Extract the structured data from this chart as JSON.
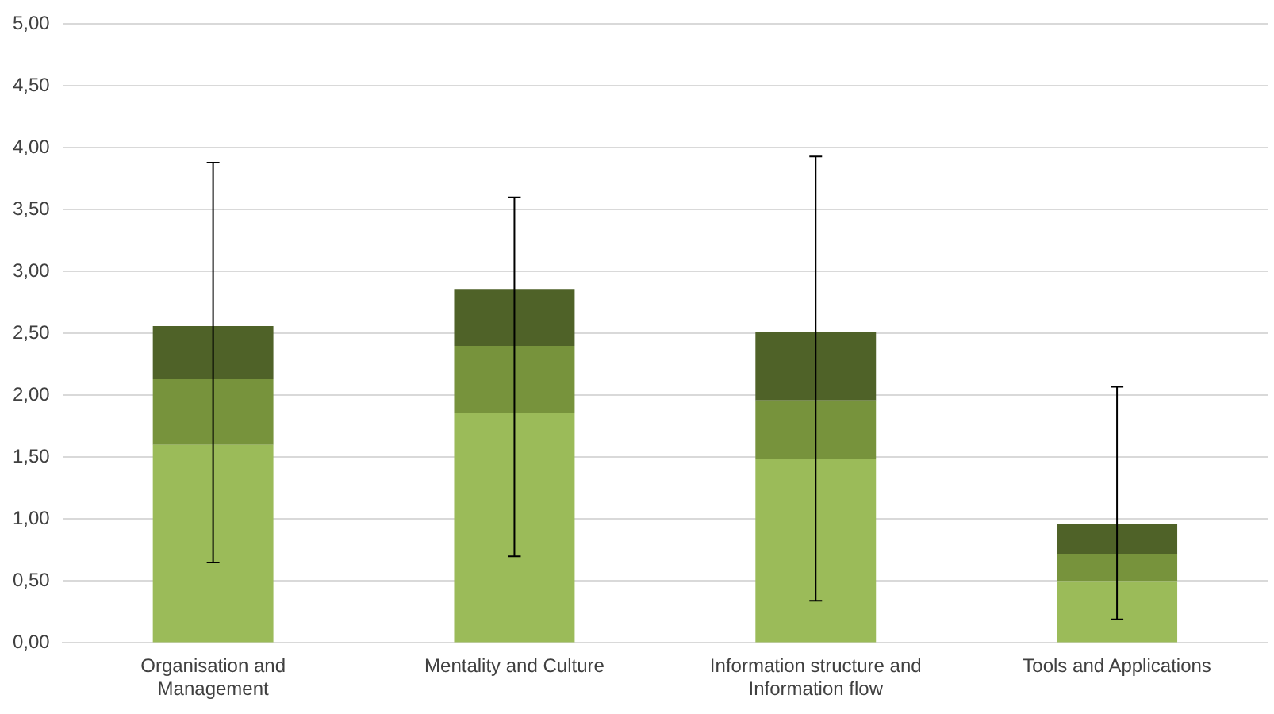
{
  "chart_data": {
    "type": "bar",
    "stacked": true,
    "categories": [
      "Organisation and Management",
      "Mentality and Culture",
      "Information structure and Information flow",
      "Tools and Applications"
    ],
    "series": [
      {
        "color": "#9bbb59",
        "values": [
          1.6,
          1.86,
          1.49,
          0.5
        ]
      },
      {
        "color": "#77933c",
        "values": [
          0.53,
          0.54,
          0.47,
          0.22
        ]
      },
      {
        "color": "#4f6228",
        "values": [
          0.43,
          0.46,
          0.55,
          0.24
        ],
        "errors": [
          [
            0.65,
            3.88
          ],
          [
            0.7,
            3.6
          ],
          [
            0.34,
            3.93
          ],
          [
            0.19,
            2.07
          ]
        ]
      }
    ],
    "ylim": [
      0,
      5
    ],
    "yticks": [
      {
        "value": 0,
        "label": "0,00"
      },
      {
        "value": 0.5,
        "label": "0,50"
      },
      {
        "value": 1,
        "label": "1,00"
      },
      {
        "value": 1.5,
        "label": "1,50"
      },
      {
        "value": 2,
        "label": "2,00"
      },
      {
        "value": 2.5,
        "label": "2,50"
      },
      {
        "value": 3,
        "label": "3,00"
      },
      {
        "value": 3.5,
        "label": "3,50"
      },
      {
        "value": 4,
        "label": "4,00"
      },
      {
        "value": 4.5,
        "label": "4,50"
      },
      {
        "value": 5,
        "label": "5,00"
      }
    ],
    "grid": "y",
    "legend": false
  }
}
